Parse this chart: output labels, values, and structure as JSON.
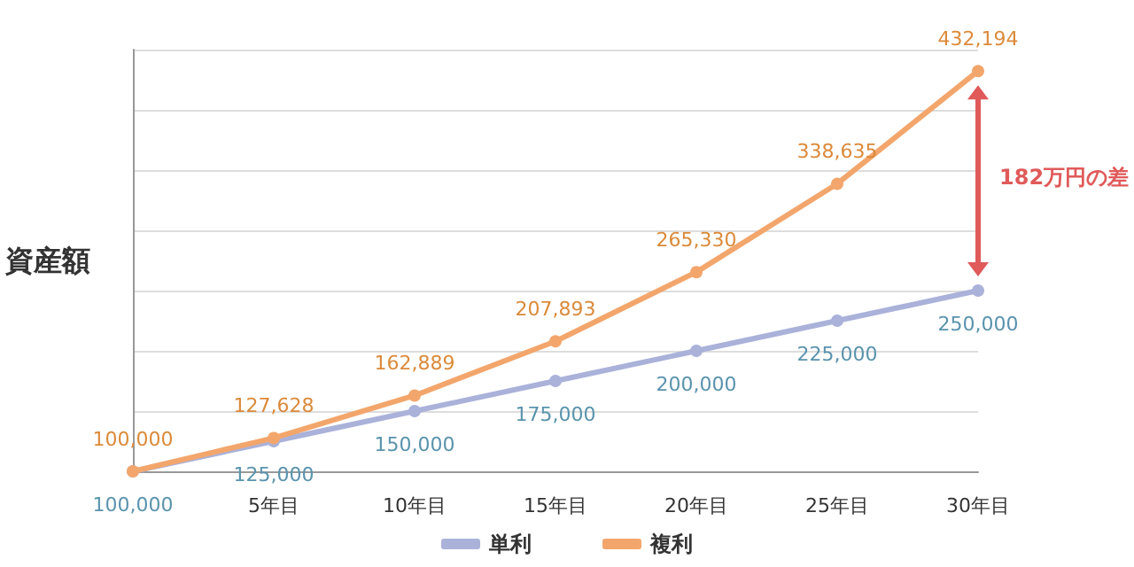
{
  "chart_data": {
    "type": "line",
    "ylabel": "資産額",
    "categories": [
      null,
      "5年目",
      "10年目",
      "15年目",
      "20年目",
      "25年目",
      "30年目"
    ],
    "series": [
      {
        "name": "単利",
        "color": "#aab2da",
        "values": [
          100000,
          125000,
          150000,
          175000,
          200000,
          225000,
          250000
        ],
        "value_labels": [
          "100,000",
          "125,000",
          "150,000",
          "175,000",
          "200,000",
          "225,000",
          "250,000"
        ]
      },
      {
        "name": "複利",
        "color": "#f3a66c",
        "values": [
          100000,
          127628,
          162889,
          207893,
          265330,
          338635,
          432194
        ],
        "value_labels": [
          "100,000",
          "127,628",
          "162,889",
          "207,893",
          "265,330",
          "338,635",
          "432,194"
        ]
      }
    ],
    "tick_labels": "x",
    "grid": "y",
    "legend": "bottom",
    "marker": "circle",
    "annotations": [
      "182万円の差"
    ]
  }
}
